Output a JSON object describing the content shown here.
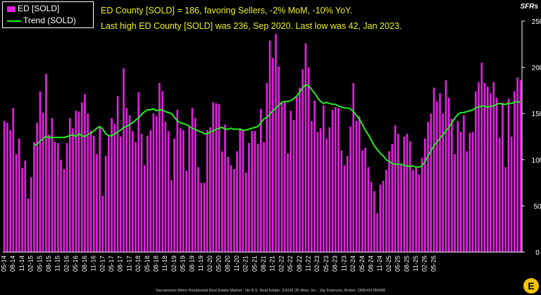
{
  "chart_data": {
    "type": "bar",
    "title": "",
    "ylabel": "SFRs",
    "xlabel": "",
    "ylim": [
      0,
      250
    ],
    "yticks": [
      0,
      50,
      100,
      150,
      200,
      250
    ],
    "grid": false,
    "legend_position": "top-left",
    "annotations": [
      "ED County [SOLD] = 186, favoring Sellers, -2% MoM, -10% YoY.",
      "Last high ED County [SOLD] was 236, Sep 2020. Last low was 42, Jan 2023."
    ],
    "x_tick_labels": [
      "05-14",
      "08-14",
      "11-14",
      "02-15",
      "05-15",
      "08-15",
      "11-15",
      "02-16",
      "05-16",
      "08-16",
      "11-16",
      "02-17",
      "05-17",
      "08-17",
      "11-17",
      "02-18",
      "05-18",
      "08-18",
      "11-18",
      "02-19",
      "05-19",
      "08-19",
      "11-19",
      "02-20",
      "05-20",
      "08-20",
      "11-20",
      "02-21",
      "05-21",
      "08-21",
      "11-21",
      "02-22",
      "05-22",
      "08-22",
      "11-22",
      "02-23",
      "05-23",
      "08-23",
      "11-23",
      "02-24",
      "05-24",
      "08-24",
      "11-24",
      "02-25",
      "05-25",
      "08-25",
      "11-25",
      "02-26",
      "05-26"
    ],
    "series": [
      {
        "name": "ED [SOLD]",
        "kind": "bar",
        "color": "#e020e0",
        "values": [
          142,
          140,
          132,
          156,
          106,
          123,
          91,
          99,
          58,
          81,
          119,
          140,
          174,
          151,
          193,
          127,
          145,
          119,
          118,
          100,
          90,
          118,
          145,
          134,
          153,
          152,
          162,
          171,
          150,
          131,
          126,
          106,
          136,
          61,
          104,
          125,
          145,
          139,
          169,
          125,
          199,
          156,
          148,
          131,
          119,
          173,
          128,
          94,
          126,
          132,
          150,
          147,
          183,
          174,
          141,
          131,
          78,
          123,
          154,
          134,
          132,
          88,
          136,
          156,
          145,
          92,
          75,
          75,
          132,
          135,
          162,
          161,
          160,
          109,
          138,
          103,
          94,
          90,
          109,
          134,
          132,
          86,
          118,
          131,
          131,
          117,
          155,
          119,
          183,
          229,
          210,
          236,
          201,
          162,
          163,
          107,
          153,
          143,
          169,
          178,
          198,
          226,
          200,
          142,
          164,
          130,
          134,
          159,
          123,
          135,
          154,
          157,
          156,
          110,
          94,
          104,
          136,
          183,
          142,
          147,
          110,
          113,
          92,
          76,
          66,
          42,
          73,
          77,
          89,
          109,
          117,
          137,
          128,
          94,
          125,
          128,
          120,
          89,
          91,
          84,
          102,
          123,
          141,
          150,
          178,
          163,
          172,
          150,
          186,
          167,
          144,
          106,
          142,
          130,
          148,
          109,
          129,
          130,
          174,
          184,
          205,
          183,
          179,
          172,
          184,
          167,
          124,
          162,
          92,
          166,
          125,
          174,
          189,
          186
        ]
      },
      {
        "name": "Trend (SOLD)",
        "kind": "line",
        "color": "#22ee22",
        "values": [
          null,
          null,
          null,
          null,
          null,
          null,
          null,
          null,
          null,
          null,
          115,
          117,
          120,
          123,
          125,
          124,
          124,
          124,
          124,
          124,
          124,
          125,
          126,
          127,
          125,
          128,
          126,
          125,
          127,
          129,
          131,
          134,
          136,
          133,
          128,
          126,
          126,
          128,
          130,
          132,
          135,
          136,
          138,
          140,
          143,
          145,
          149,
          152,
          154,
          154,
          155,
          153,
          154,
          154,
          152,
          151,
          150,
          146,
          142,
          140,
          139,
          138,
          136,
          134,
          133,
          131,
          130,
          128,
          128,
          130,
          131,
          133,
          134,
          135,
          133,
          133,
          134,
          133,
          133,
          133,
          132,
          132,
          133,
          134,
          135,
          136,
          140,
          144,
          146,
          149,
          153,
          156,
          159,
          162,
          163,
          163,
          164,
          166,
          169,
          173,
          178,
          181,
          180,
          176,
          172,
          167,
          163,
          161,
          162,
          161,
          160,
          160,
          158,
          157,
          156,
          156,
          155,
          152,
          148,
          144,
          138,
          132,
          127,
          121,
          115,
          111,
          107,
          104,
          100,
          98,
          96,
          95,
          95,
          95,
          94,
          93,
          93,
          93,
          92,
          92,
          93,
          98,
          104,
          110,
          115,
          119,
          123,
          127,
          131,
          135,
          140,
          145,
          149,
          151,
          151,
          152,
          153,
          154,
          156,
          157,
          158,
          158,
          157,
          158,
          158,
          160,
          161,
          160,
          160,
          161,
          161,
          162,
          163,
          162
        ]
      }
    ]
  },
  "legend": {
    "bar_label": "ED [SOLD]",
    "line_label": "Trend (SOLD)"
  },
  "footer": "Sacramento Metro Residential Real Estate Market - No B.S. Real Estate, ©2026 JD Wise, Inc - Jay Emerson, Broker, DRE#01786498",
  "logo_letter": "E",
  "colors": {
    "bar": "#e020e0",
    "trend": "#22ee22",
    "annotation": "#f0f020",
    "background": "#000000"
  }
}
